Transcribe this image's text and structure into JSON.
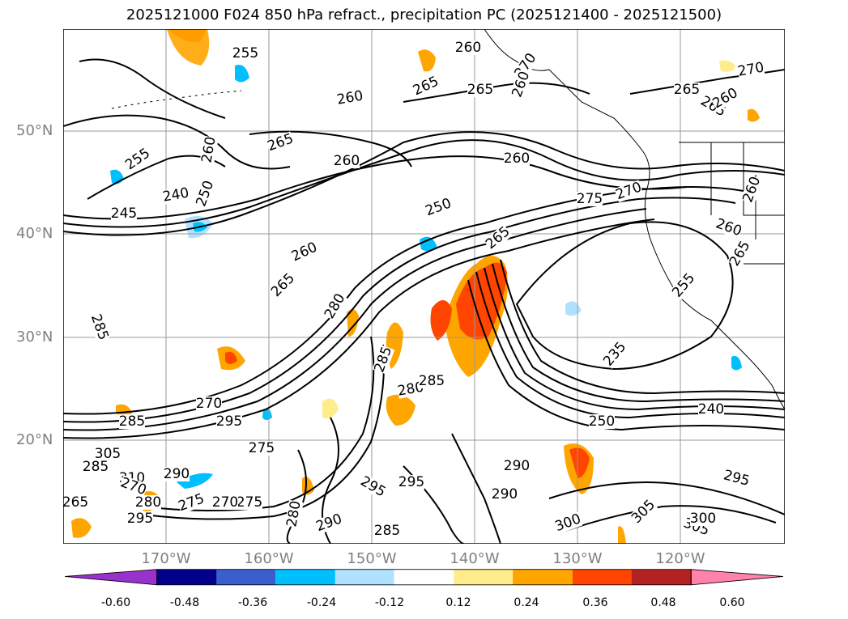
{
  "title": "2025121000 F024 850 hPa refract., precipitation PC (2025121400 - 2025121500)",
  "lat_labels": [
    "50°N",
    "40°N",
    "30°N",
    "20°N"
  ],
  "lon_labels": [
    "170°W",
    "160°W",
    "150°W",
    "140°W",
    "130°W",
    "120°W"
  ],
  "contour_labels": [
    "260",
    "265",
    "265",
    "270",
    "250",
    "255",
    "265",
    "260",
    "255",
    "240",
    "245",
    "260",
    "250",
    "260",
    "265",
    "260",
    "270",
    "275",
    "260",
    "265",
    "260",
    "265",
    "255",
    "280",
    "285",
    "280",
    "285",
    "285",
    "290",
    "295",
    "275",
    "270",
    "235",
    "240",
    "250",
    "285",
    "295",
    "290",
    "295",
    "300",
    "305",
    "305",
    "300",
    "270",
    "265",
    "260",
    "265",
    "260",
    "280",
    "285",
    "290",
    "295",
    "305",
    "310",
    "280",
    "265",
    "270",
    "275",
    "295",
    "285",
    "290",
    "275",
    "270",
    "260"
  ],
  "colorbar": {
    "ticks": [
      "-0.60",
      "-0.48",
      "-0.36",
      "-0.24",
      "-0.12",
      "0.12",
      "0.24",
      "0.36",
      "0.48",
      "0.60"
    ],
    "colors": [
      "#9932CC",
      "#00008B",
      "#3A5FCD",
      "#00BFFF",
      "#B0E2FF",
      "#FFFFFF",
      "#FFEC8B",
      "#FFA500",
      "#FF4500",
      "#B22222",
      "#FF82AB"
    ]
  }
}
